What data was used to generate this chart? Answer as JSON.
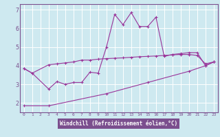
{
  "title": "",
  "xlabel": "Windchill (Refroidissement éolien,°C)",
  "bg_color": "#cee9f0",
  "plot_bg_color": "#cee9f0",
  "line_color": "#993399",
  "xlabel_bg": "#7b4f8e",
  "xlabel_fg": "#ffffff",
  "grid_color": "#ffffff",
  "spine_color": "#7b4f8e",
  "tick_color": "#7b4f8e",
  "xlim": [
    -0.5,
    23.5
  ],
  "ylim": [
    1.5,
    7.3
  ],
  "yticks": [
    2,
    3,
    4,
    5,
    6,
    7
  ],
  "ytick_labels": [
    "2",
    "3",
    "4",
    "5",
    "6",
    "7"
  ],
  "xtick_labels": [
    "0",
    "1",
    "2",
    "3",
    "4",
    "5",
    "6",
    "7",
    "8",
    "9",
    "10",
    "11",
    "12",
    "13",
    "14",
    "15",
    "16",
    "17",
    "18",
    "19",
    "20",
    "21",
    "22",
    "23"
  ],
  "curve1_x": [
    0,
    1,
    3,
    4,
    5,
    6,
    7,
    8,
    9,
    10,
    11,
    12,
    13,
    14,
    15,
    16,
    17,
    18,
    19,
    20,
    21,
    22,
    23
  ],
  "curve1_y": [
    3.85,
    3.6,
    4.05,
    4.1,
    4.15,
    4.2,
    4.3,
    4.3,
    4.35,
    4.38,
    4.4,
    4.42,
    4.45,
    4.48,
    4.5,
    4.52,
    4.55,
    4.58,
    4.6,
    4.6,
    4.55,
    4.1,
    4.2
  ],
  "curve2_x": [
    0,
    1,
    3,
    4,
    5,
    6,
    7,
    8,
    9,
    10,
    11,
    12,
    13,
    14,
    15,
    16,
    17,
    18,
    19,
    20,
    21,
    22,
    23
  ],
  "curve2_y": [
    3.85,
    3.6,
    2.75,
    3.15,
    3.0,
    3.1,
    3.1,
    3.65,
    3.6,
    5.0,
    6.75,
    6.2,
    6.85,
    6.1,
    6.1,
    6.6,
    4.5,
    4.6,
    4.65,
    4.7,
    4.7,
    4.0,
    4.2
  ],
  "curve3_x": [
    0,
    3,
    10,
    15,
    20,
    22,
    23
  ],
  "curve3_y": [
    1.85,
    1.85,
    2.5,
    3.1,
    3.7,
    4.0,
    4.2
  ]
}
